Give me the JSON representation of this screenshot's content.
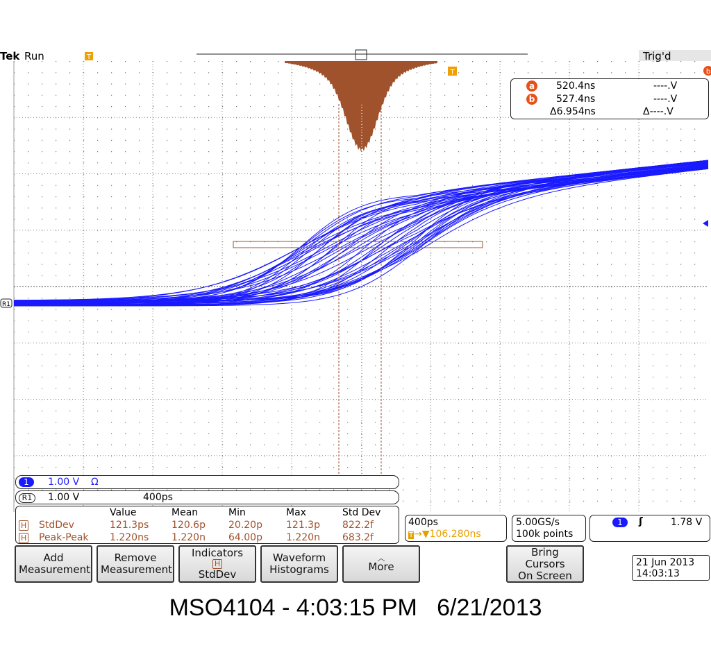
{
  "header": {
    "brand": "Tek",
    "state": "Run",
    "trigger_status": "Trig'd",
    "trigger_marker": "T"
  },
  "cursor_readout": {
    "a": {
      "marker": "a",
      "time": "520.4ns",
      "voltage": "----.V"
    },
    "b": {
      "marker": "b",
      "time": "527.4ns",
      "voltage": "----.V"
    },
    "delta": {
      "time": "Δ6.954ns",
      "voltage": "Δ----.V"
    }
  },
  "channel_labels": {
    "ch1": {
      "marker": "1",
      "scale": "1.00 V",
      "impedance": "Ω"
    },
    "ref1": {
      "marker": "R1",
      "scale": "1.00 V",
      "timebase": "400ps"
    }
  },
  "measurements": {
    "columns": [
      "Value",
      "Mean",
      "Min",
      "Max",
      "Std Dev"
    ],
    "rows": [
      {
        "source": "H",
        "name": "StdDev",
        "cells": [
          "121.3ps",
          "120.6p",
          "20.20p",
          "121.3p",
          "822.2f"
        ]
      },
      {
        "source": "H",
        "name": "Peak-Peak",
        "cells": [
          "1.220ns",
          "1.220n",
          "64.00p",
          "1.220n",
          "683.2f"
        ]
      }
    ]
  },
  "timebase": {
    "scale": "400ps",
    "position": "106.280ns"
  },
  "acquisition": {
    "sample_rate": "5.00GS/s",
    "record_length": "100k points"
  },
  "trigger": {
    "source": "1",
    "level": "1.78 V"
  },
  "menu": {
    "add": "Add Measurement",
    "remove": "Remove Measurement",
    "indicators": {
      "title": "Indicators",
      "badge": "H",
      "value": "StdDev"
    },
    "histograms": "Waveform Histograms",
    "more": "More",
    "cursors": "Bring Cursors On Screen"
  },
  "datetime": {
    "date": "21 Jun 2013",
    "time": "14:03:13"
  },
  "caption": "MSO4104 - 4:03:15 PM   6/21/2013"
}
